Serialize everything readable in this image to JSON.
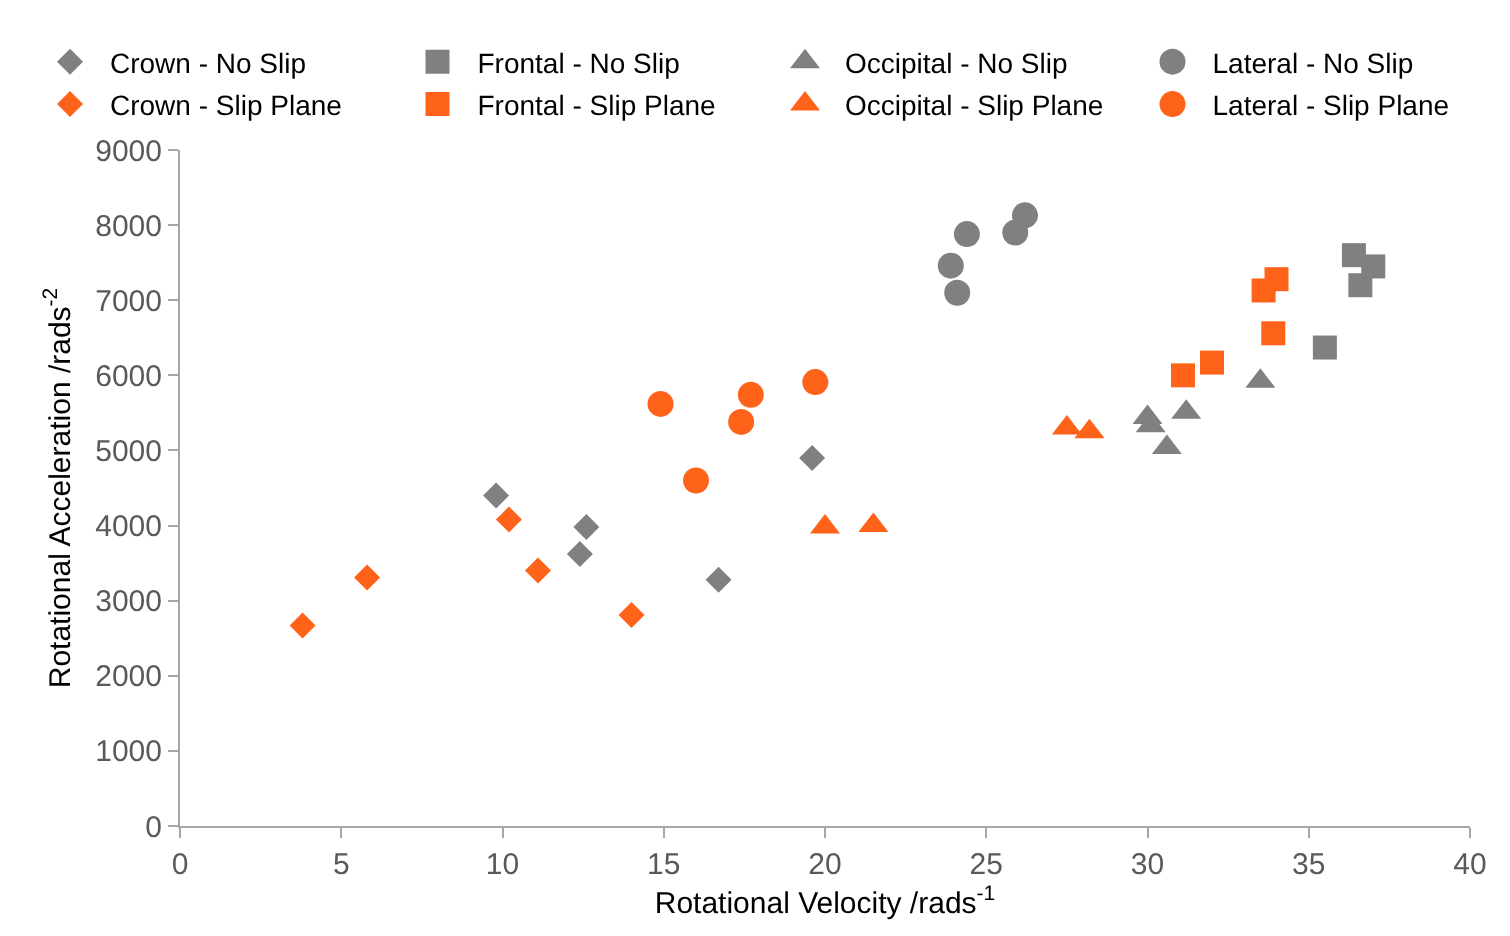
{
  "chart_data": {
    "type": "scatter",
    "xlabel": "Rotational Velocity /rads$^{-1}$",
    "ylabel": "Rotational Acceleration /rads$^{-2}$",
    "xlim": [
      0,
      40
    ],
    "xticks": [
      0,
      5,
      10,
      15,
      20,
      25,
      30,
      35,
      40
    ],
    "ylim": [
      0,
      9000
    ],
    "yticks": [
      0,
      1000,
      2000,
      3000,
      4000,
      5000,
      6000,
      7000,
      8000,
      9000
    ],
    "legend": "top",
    "series": [
      {
        "name": "Crown - No Slip",
        "color": "#808080",
        "marker": "diamond",
        "x": [
          9.8,
          12.6,
          12.4,
          16.7,
          19.6
        ],
        "values": [
          4400,
          3980,
          3620,
          3280,
          4900
        ]
      },
      {
        "name": "Frontal - No Slip",
        "color": "#808080",
        "marker": "square",
        "x": [
          36.4,
          37.0,
          36.6,
          35.5
        ],
        "values": [
          7600,
          7450,
          7200,
          6370
        ]
      },
      {
        "name": "Occipital - No Slip",
        "color": "#808080",
        "marker": "triangle",
        "x": [
          30.0,
          30.1,
          30.6,
          31.2,
          33.5
        ],
        "values": [
          5440,
          5330,
          5040,
          5510,
          5920
        ]
      },
      {
        "name": "Lateral - No Slip",
        "color": "#808080",
        "marker": "circle",
        "x": [
          24.4,
          23.9,
          24.1,
          25.9,
          26.2
        ],
        "values": [
          7880,
          7460,
          7100,
          7900,
          8130
        ]
      },
      {
        "name": "Crown - Slip Plane",
        "color": "#ff6319",
        "marker": "diamond",
        "x": [
          3.8,
          5.8,
          10.2,
          11.1,
          14.0
        ],
        "values": [
          2670,
          3310,
          4080,
          3400,
          2810
        ]
      },
      {
        "name": "Frontal - Slip Plane",
        "color": "#ff6319",
        "marker": "square",
        "x": [
          33.6,
          34.0,
          33.9,
          31.1,
          32.0
        ],
        "values": [
          7130,
          7280,
          6560,
          6000,
          6170
        ]
      },
      {
        "name": "Occipital - Slip Plane",
        "color": "#ff6319",
        "marker": "triangle",
        "x": [
          20.0,
          21.5,
          27.5,
          28.2
        ],
        "values": [
          3980,
          4000,
          5300,
          5250
        ]
      },
      {
        "name": "Lateral - Slip Plane",
        "color": "#ff6319",
        "marker": "circle",
        "x": [
          14.9,
          16.0,
          17.4,
          17.7,
          19.7
        ],
        "values": [
          5620,
          4600,
          5380,
          5740,
          5910
        ]
      }
    ]
  }
}
